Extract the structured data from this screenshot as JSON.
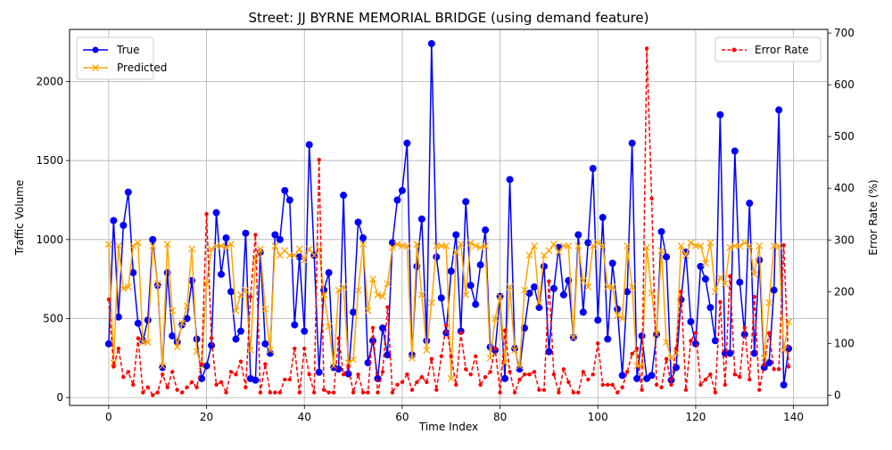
{
  "chart_data": {
    "type": "line",
    "title": "Street: JJ BYRNE MEMORIAL BRIDGE (using demand feature)",
    "xlabel": "Time Index",
    "ylabel": "Traffic Volume",
    "y2label": "Error Rate (%)",
    "xlim": [
      -8,
      147
    ],
    "ylim": [
      -50,
      2330
    ],
    "y2lim": [
      -20,
      707
    ],
    "xticks": [
      0,
      20,
      40,
      60,
      80,
      100,
      120,
      140
    ],
    "yticks": [
      0,
      500,
      1000,
      1500,
      2000
    ],
    "y2ticks": [
      0,
      100,
      200,
      300,
      400,
      500,
      600,
      700
    ],
    "grid": true,
    "legend_left": "upper-left",
    "legend_right": "upper-right",
    "series": [
      {
        "name": "True",
        "axis": "left",
        "color": "#0000ff",
        "marker": "circle",
        "values": [
          340,
          1120,
          510,
          1090,
          1300,
          790,
          470,
          360,
          490,
          1000,
          710,
          190,
          790,
          390,
          350,
          460,
          500,
          740,
          370,
          120,
          200,
          330,
          1170,
          780,
          1010,
          670,
          370,
          420,
          1040,
          120,
          110,
          920,
          340,
          280,
          1030,
          1000,
          1310,
          1250,
          460,
          890,
          420,
          1600,
          900,
          160,
          680,
          790,
          190,
          180,
          1280,
          150,
          540,
          1110,
          1010,
          220,
          360,
          120,
          440,
          270,
          980,
          1250,
          1310,
          1610,
          270,
          830,
          1130,
          360,
          2240,
          890,
          630,
          410,
          800,
          1030,
          420,
          1240,
          710,
          590,
          840,
          1060,
          320,
          300,
          640,
          120,
          1380,
          310,
          180,
          440,
          660,
          700,
          570,
          830,
          290,
          690,
          950,
          650,
          740,
          380,
          1030,
          540,
          980,
          1450,
          490,
          1140,
          370,
          850,
          560,
          140,
          670,
          1610,
          120,
          390,
          120,
          140,
          400,
          1050,
          890,
          110,
          190,
          620,
          920,
          480,
          340,
          830,
          750,
          570,
          360,
          1790,
          280,
          280,
          1560,
          730,
          400,
          1230,
          280,
          870,
          190,
          220,
          680,
          1820,
          80,
          310
        ]
      },
      {
        "name": "Predicted",
        "axis": "left",
        "color": "#ffa500",
        "marker": "x",
        "values": [
          970,
          220,
          960,
          690,
          700,
          960,
          980,
          350,
          350,
          960,
          720,
          200,
          970,
          550,
          320,
          470,
          580,
          940,
          290,
          200,
          720,
          940,
          960,
          960,
          950,
          970,
          550,
          650,
          680,
          300,
          880,
          940,
          560,
          300,
          960,
          900,
          930,
          900,
          900,
          940,
          870,
          940,
          900,
          940,
          650,
          450,
          200,
          680,
          700,
          220,
          240,
          680,
          970,
          550,
          750,
          650,
          640,
          720,
          950,
          970,
          960,
          960,
          250,
          970,
          650,
          300,
          600,
          960,
          960,
          960,
          120,
          920,
          970,
          650,
          980,
          960,
          950,
          960,
          250,
          500,
          640,
          220,
          700,
          300,
          200,
          680,
          900,
          960,
          600,
          900,
          930,
          970,
          920,
          960,
          960,
          380,
          960,
          740,
          700,
          960,
          980,
          960,
          700,
          700,
          520,
          500,
          960,
          700,
          200,
          200,
          950,
          660,
          400,
          930,
          350,
          250,
          280,
          960,
          900,
          980,
          960,
          960,
          850,
          980,
          670,
          760,
          720,
          950,
          960,
          960,
          980,
          960,
          780,
          960,
          250,
          600,
          960,
          960,
          300,
          480
        ]
      },
      {
        "name": "Error Rate",
        "axis": "right",
        "color": "#ff0000",
        "marker": "dot",
        "linestyle": "dashed",
        "values": [
          185,
          55,
          90,
          35,
          45,
          20,
          110,
          5,
          15,
          0,
          5,
          40,
          15,
          45,
          10,
          5,
          15,
          25,
          15,
          60,
          350,
          110,
          20,
          25,
          5,
          45,
          40,
          65,
          15,
          190,
          310,
          5,
          60,
          5,
          5,
          5,
          30,
          30,
          90,
          5,
          90,
          40,
          5,
          455,
          10,
          5,
          5,
          110,
          40,
          55,
          5,
          40,
          5,
          5,
          130,
          5,
          45,
          170,
          5,
          20,
          25,
          40,
          10,
          25,
          35,
          25,
          70,
          10,
          75,
          135,
          75,
          20,
          120,
          50,
          40,
          75,
          20,
          35,
          45,
          90,
          5,
          125,
          45,
          5,
          30,
          40,
          40,
          45,
          10,
          10,
          220,
          40,
          5,
          50,
          25,
          5,
          5,
          45,
          30,
          40,
          100,
          20,
          20,
          20,
          5,
          15,
          45,
          80,
          90,
          10,
          670,
          380,
          20,
          15,
          70,
          20,
          90,
          200,
          10,
          105,
          120,
          20,
          30,
          40,
          5,
          180,
          20,
          230,
          40,
          35,
          130,
          30,
          190,
          10,
          60,
          120,
          50,
          50,
          290,
          55
        ]
      }
    ]
  }
}
